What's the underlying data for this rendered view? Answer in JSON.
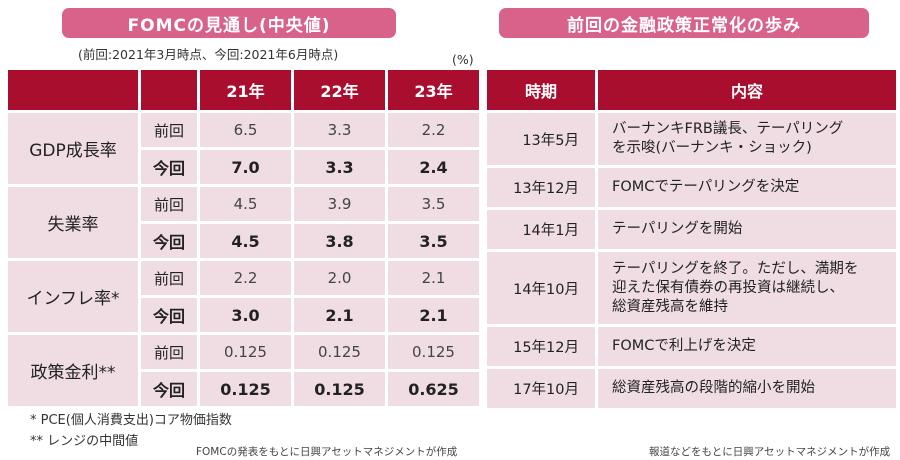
{
  "left_banner": "FOMCの見通し(中央値)",
  "right_banner": "前回の金融政策正常化の歩み",
  "as_of": "(前回:2021年3月時点、今回:2021年6月時点)",
  "unit": "(%)",
  "fomc_table": {
    "headers": [
      "21年",
      "22年",
      "23年"
    ],
    "rows": [
      {
        "metric": "GDP成長率",
        "prev_label": "前回",
        "cur_label": "今回",
        "prev": [
          "6.5",
          "3.3",
          "2.2"
        ],
        "cur": [
          "7.0",
          "3.3",
          "2.4"
        ]
      },
      {
        "metric": "失業率",
        "prev_label": "前回",
        "cur_label": "今回",
        "prev": [
          "4.5",
          "3.9",
          "3.5"
        ],
        "cur": [
          "4.5",
          "3.8",
          "3.5"
        ]
      },
      {
        "metric": "インフレ率*",
        "prev_label": "前回",
        "cur_label": "今回",
        "prev": [
          "2.2",
          "2.0",
          "2.1"
        ],
        "cur": [
          "3.0",
          "2.1",
          "2.1"
        ]
      },
      {
        "metric": "政策金利**",
        "prev_label": "前回",
        "cur_label": "今回",
        "prev": [
          "0.125",
          "0.125",
          "0.125"
        ],
        "cur": [
          "0.125",
          "0.125",
          "0.625"
        ]
      }
    ]
  },
  "history_table": {
    "headers": [
      "時期",
      "内容"
    ],
    "rows": [
      {
        "period": "13年5月",
        "content": [
          "バーナンキFRB議長、テーパリング",
          "を示唆(バーナンキ・ショック)"
        ]
      },
      {
        "period": "13年12月",
        "content": [
          "FOMCでテーパリングを決定"
        ]
      },
      {
        "period": "14年1月",
        "content": [
          "テーパリングを開始"
        ]
      },
      {
        "period": "14年10月",
        "content": [
          "テーパリングを終了。ただし、満期を",
          "迎えた保有債券の再投資は継続し、",
          "総資産残高を維持"
        ]
      },
      {
        "period": "15年12月",
        "content": [
          "FOMCで利上げを決定"
        ]
      },
      {
        "period": "17年10月",
        "content": [
          "総資産残高の段階的縮小を開始"
        ]
      }
    ]
  },
  "footnotes": [
    "*  PCE(個人消費支出)コア物価指数",
    "** レンジの中間値"
  ],
  "source_left": "FOMCの発表をもとに日興アセットマネジメントが作成",
  "source_right": "報道などをもとに日興アセットマネジメントが作成"
}
